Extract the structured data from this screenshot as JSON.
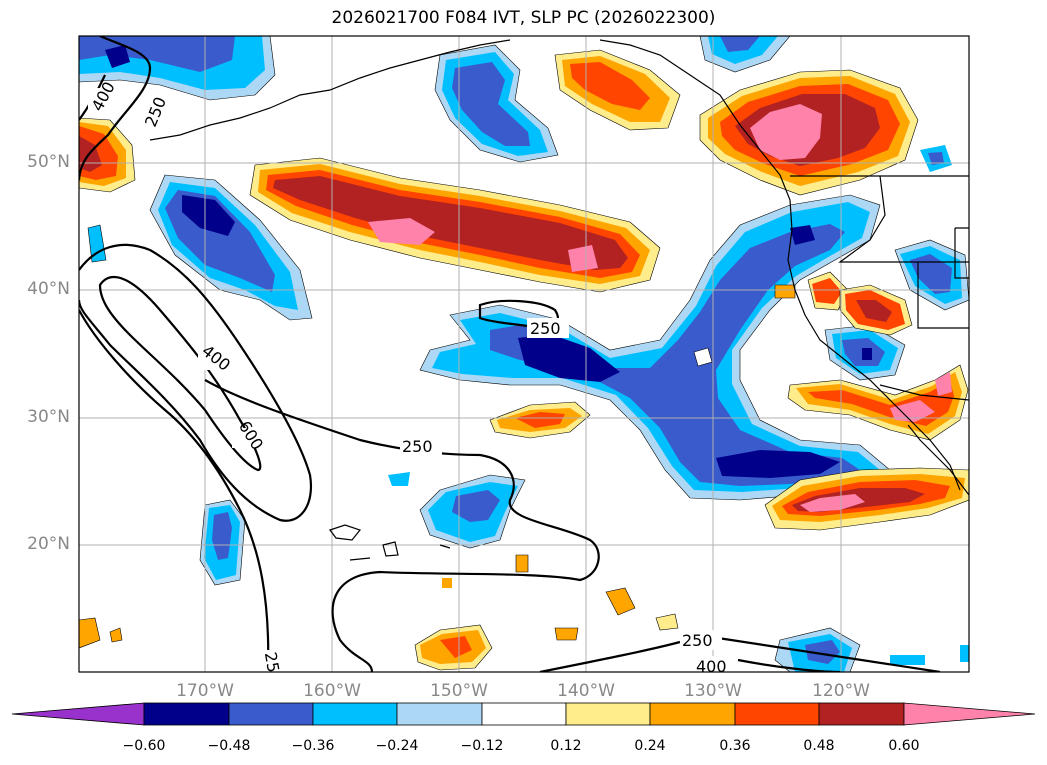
{
  "title": "2026021700 F084 IVT, SLP PC (2026022300)",
  "lat_labels": [
    "50°N",
    "40°N",
    "30°N",
    "20°N"
  ],
  "lon_labels": [
    "170°W",
    "160°W",
    "150°W",
    "140°W",
    "130°W",
    "120°W"
  ],
  "colorbar": {
    "ticks": [
      "−0.60",
      "−0.48",
      "−0.36",
      "−0.24",
      "−0.12",
      "0.12",
      "0.24",
      "0.36",
      "0.48",
      "0.60"
    ],
    "colors": [
      "#9932cc",
      "#00008b",
      "#3a5bcc",
      "#00bfff",
      "#add8f5",
      "#ffffff",
      "#ffec8b",
      "#ffa500",
      "#ff4500",
      "#b22222",
      "#ff82ab"
    ]
  },
  "contour_labels": [
    "400",
    "250",
    "250",
    "400",
    "600",
    "250",
    "250",
    "400",
    "25"
  ]
}
